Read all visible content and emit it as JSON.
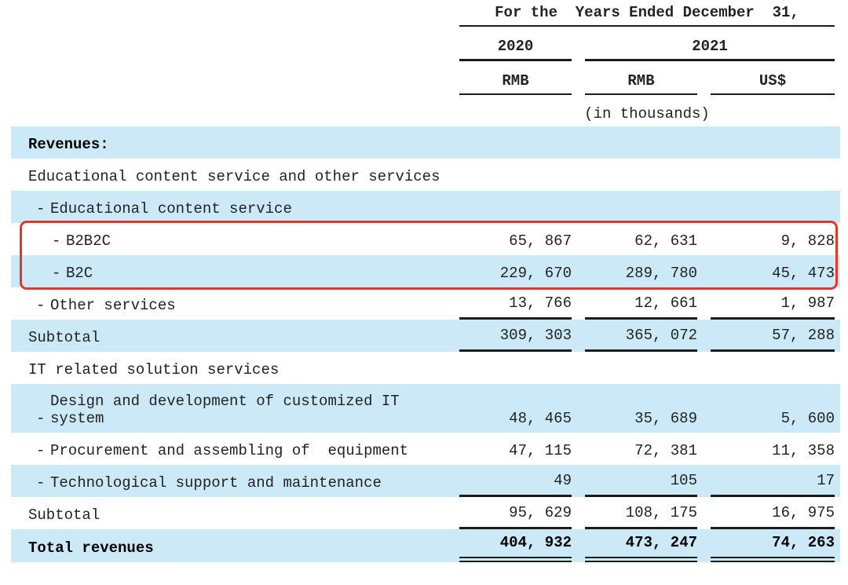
{
  "colors": {
    "row_shade": "#cce9f8",
    "line": "#1c1c1c",
    "highlight_red": "#e0382b",
    "text": "#222222"
  },
  "table": {
    "bullet": "-",
    "header": {
      "period_title": "For the  Years Ended December  31,",
      "year_2020": "2020",
      "year_2021": "2021",
      "rmb_2020": "RMB",
      "rmb_2021": "RMB",
      "usd_2021": "US$",
      "units_note": "(in thousands)"
    },
    "rows": [
      {
        "label": "Revenues:",
        "indent": 0,
        "bold": true,
        "shaded": true,
        "underline": "none",
        "values": [
          "",
          "",
          ""
        ]
      },
      {
        "label": "Educational content service and other services",
        "indent": 0,
        "bold": false,
        "shaded": false,
        "underline": "none",
        "values": [
          "",
          "",
          ""
        ]
      },
      {
        "label": "Educational content service",
        "indent": 1,
        "bold": false,
        "shaded": true,
        "underline": "none",
        "values": [
          "",
          "",
          ""
        ]
      },
      {
        "label": "B2B2C",
        "indent": 2,
        "bold": false,
        "shaded": false,
        "underline": "none",
        "values": [
          "65, 867",
          "62, 631",
          "9, 828"
        ]
      },
      {
        "label": "B2C",
        "indent": 2,
        "bold": false,
        "shaded": true,
        "underline": "none",
        "values": [
          "229, 670",
          "289, 780",
          "45, 473"
        ]
      },
      {
        "label": "Other services",
        "indent": 1,
        "bold": false,
        "shaded": false,
        "underline": "single",
        "values": [
          "13, 766",
          "12, 661",
          "1, 987"
        ]
      },
      {
        "label": "Subtotal",
        "indent": 0,
        "bold": false,
        "shaded": true,
        "underline": "single",
        "values": [
          "309, 303",
          "365, 072",
          "57, 288"
        ]
      },
      {
        "label": "IT related solution services",
        "indent": 0,
        "bold": false,
        "shaded": false,
        "underline": "none",
        "values": [
          "",
          "",
          ""
        ]
      },
      {
        "label": "Design and development of customized IT system",
        "indent": 1,
        "bold": false,
        "shaded": true,
        "tall": true,
        "underline": "none",
        "values": [
          "48, 465",
          "35, 689",
          "5, 600"
        ]
      },
      {
        "label": "Procurement and assembling of  equipment",
        "indent": 1,
        "bold": false,
        "shaded": false,
        "underline": "none",
        "values": [
          "47, 115",
          "72, 381",
          "11, 358"
        ]
      },
      {
        "label": "Technological support and maintenance",
        "indent": 1,
        "bold": false,
        "shaded": true,
        "underline": "single",
        "values": [
          "49",
          "105",
          "17"
        ]
      },
      {
        "label": "Subtotal",
        "indent": 0,
        "bold": false,
        "shaded": false,
        "underline": "single",
        "values": [
          "95, 629",
          "108, 175",
          "16, 975"
        ]
      },
      {
        "label": "Total revenues",
        "indent": 0,
        "bold": true,
        "shaded": true,
        "underline": "double",
        "values": [
          "404, 932",
          "473, 247",
          "74, 263"
        ]
      }
    ]
  }
}
